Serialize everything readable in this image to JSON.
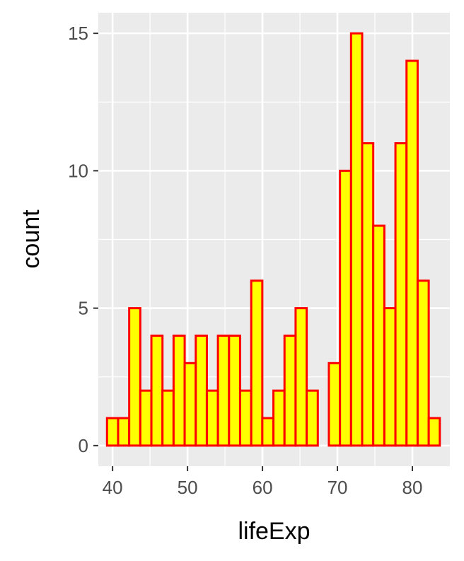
{
  "chart_data": {
    "type": "bar",
    "subtype": "histogram",
    "xlabel": "lifeExp",
    "ylabel": "count",
    "xlim": [
      38.1,
      85.0
    ],
    "ylim": [
      -0.75,
      15.75
    ],
    "x_ticks": [
      40,
      50,
      60,
      70,
      80
    ],
    "y_ticks": [
      0,
      5,
      10,
      15
    ],
    "grid": true,
    "bin_width": 1.48,
    "bin_centers": [
      40.0,
      41.48,
      42.96,
      44.44,
      45.92,
      47.4,
      48.88,
      50.36,
      51.84,
      53.32,
      54.8,
      56.28,
      57.76,
      59.24,
      60.72,
      62.2,
      63.68,
      65.16,
      66.64,
      68.12,
      69.6,
      71.08,
      72.56,
      74.04,
      75.52,
      77.0,
      78.48,
      79.96,
      81.44,
      82.92
    ],
    "counts": [
      1,
      1,
      5,
      2,
      4,
      2,
      4,
      3,
      4,
      2,
      4,
      4,
      2,
      6,
      1,
      2,
      4,
      5,
      2,
      0,
      3,
      10,
      15,
      11,
      8,
      5,
      11,
      14,
      6,
      1
    ],
    "colors": {
      "bar_fill": "#FFFF00",
      "bar_outline": "#FF0000",
      "panel_background": "#EBEBEB",
      "grid": "#FFFFFF",
      "tick_text": "#4D4D4D",
      "axis_title_text": "#000000"
    }
  }
}
